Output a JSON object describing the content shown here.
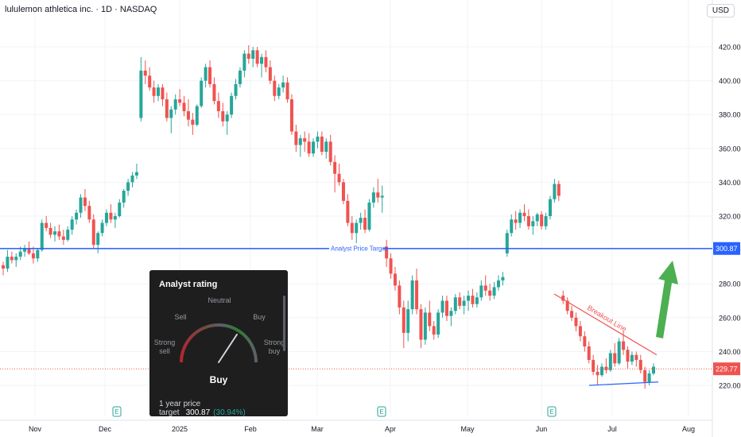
{
  "header": {
    "symbol_title": "lululemon athletica inc. · 1D · NASDAQ",
    "currency_button": "USD"
  },
  "colors": {
    "up": "#26a69a",
    "down": "#ef5350",
    "target_line": "#2962ff",
    "breakout_line": "#ef5350",
    "support_line": "#2962ff",
    "arrow": "#4caf50",
    "current_price": "#ef5350"
  },
  "analyst_rating": {
    "title": "Analyst rating",
    "labels": {
      "strong_sell": "Strong sell",
      "sell": "Sell",
      "neutral": "Neutral",
      "buy": "Buy",
      "strong_buy": "Strong buy"
    },
    "result": "Buy",
    "price_target_label": "1 year price target",
    "price_target_value": "300.87",
    "price_target_pct": "(30.94%)"
  },
  "chart_data": {
    "type": "candlestick",
    "title": "lululemon athletica inc. · 1D · NASDAQ",
    "currency": "USD",
    "ylim": [
      200,
      430
    ],
    "y_ticks": [
      "220.00",
      "240.00",
      "260.00",
      "280.00",
      "300.00",
      "320.00",
      "340.00",
      "360.00",
      "380.00",
      "400.00",
      "420.00"
    ],
    "x_ticks": [
      "Nov",
      "Dec",
      "2025",
      "Feb",
      "Mar",
      "Apr",
      "May",
      "Jun",
      "Jul",
      "Aug"
    ],
    "price_levels": [
      {
        "label": "Analyst Price Target",
        "value": 300.87,
        "tag": "300.87"
      },
      {
        "label": "",
        "value": 229.77,
        "tag": "229.77"
      }
    ],
    "annotations": [
      "Breakout Line"
    ],
    "earnings_markers": [
      "E",
      "E",
      "E"
    ],
    "candles": [
      [
        291,
        293,
        285,
        289
      ],
      [
        289,
        300,
        287,
        296
      ],
      [
        296,
        299,
        292,
        294
      ],
      [
        294,
        298,
        290,
        296
      ],
      [
        296,
        302,
        294,
        299
      ],
      [
        299,
        303,
        296,
        301
      ],
      [
        301,
        305,
        297,
        298
      ],
      [
        298,
        302,
        292,
        295
      ],
      [
        295,
        301,
        293,
        300
      ],
      [
        300,
        318,
        299,
        316
      ],
      [
        316,
        320,
        311,
        313
      ],
      [
        313,
        316,
        307,
        309
      ],
      [
        309,
        314,
        305,
        311
      ],
      [
        311,
        315,
        306,
        308
      ],
      [
        308,
        312,
        303,
        306
      ],
      [
        306,
        314,
        305,
        312
      ],
      [
        312,
        320,
        309,
        318
      ],
      [
        318,
        324,
        315,
        322
      ],
      [
        322,
        333,
        319,
        331
      ],
      [
        331,
        336,
        323,
        326
      ],
      [
        326,
        329,
        316,
        318
      ],
      [
        318,
        321,
        301,
        303
      ],
      [
        303,
        311,
        298,
        310
      ],
      [
        310,
        318,
        308,
        316
      ],
      [
        316,
        324,
        314,
        322
      ],
      [
        322,
        327,
        316,
        318
      ],
      [
        318,
        322,
        313,
        320
      ],
      [
        320,
        330,
        319,
        328
      ],
      [
        328,
        336,
        325,
        335
      ],
      [
        335,
        342,
        332,
        340
      ],
      [
        340,
        346,
        337,
        344
      ],
      [
        344,
        351,
        342,
        346
      ],
      [
        378,
        414,
        376,
        406
      ],
      [
        406,
        412,
        398,
        403
      ],
      [
        403,
        408,
        394,
        396
      ],
      [
        396,
        400,
        387,
        391
      ],
      [
        391,
        398,
        388,
        396
      ],
      [
        396,
        398,
        385,
        389
      ],
      [
        389,
        393,
        376,
        378
      ],
      [
        378,
        385,
        369,
        383
      ],
      [
        383,
        392,
        380,
        389
      ],
      [
        389,
        395,
        385,
        387
      ],
      [
        387,
        391,
        379,
        382
      ],
      [
        382,
        389,
        373,
        377
      ],
      [
        377,
        381,
        368,
        374
      ],
      [
        374,
        386,
        373,
        385
      ],
      [
        385,
        402,
        384,
        400
      ],
      [
        400,
        410,
        396,
        408
      ],
      [
        408,
        412,
        396,
        398
      ],
      [
        398,
        402,
        386,
        388
      ],
      [
        388,
        393,
        378,
        382
      ],
      [
        382,
        387,
        373,
        376
      ],
      [
        376,
        382,
        368,
        380
      ],
      [
        380,
        393,
        378,
        391
      ],
      [
        391,
        401,
        389,
        398
      ],
      [
        398,
        408,
        396,
        406
      ],
      [
        406,
        418,
        402,
        416
      ],
      [
        416,
        421,
        410,
        413
      ],
      [
        413,
        420,
        408,
        418
      ],
      [
        418,
        420,
        408,
        410
      ],
      [
        410,
        416,
        402,
        414
      ],
      [
        414,
        418,
        405,
        408
      ],
      [
        408,
        412,
        398,
        400
      ],
      [
        400,
        403,
        388,
        391
      ],
      [
        391,
        398,
        389,
        396
      ],
      [
        396,
        403,
        393,
        399
      ],
      [
        399,
        402,
        387,
        389
      ],
      [
        389,
        392,
        368,
        370
      ],
      [
        370,
        374,
        358,
        362
      ],
      [
        362,
        368,
        355,
        366
      ],
      [
        366,
        370,
        358,
        364
      ],
      [
        364,
        369,
        355,
        357
      ],
      [
        357,
        366,
        355,
        364
      ],
      [
        364,
        370,
        360,
        367
      ],
      [
        367,
        370,
        356,
        358
      ],
      [
        358,
        366,
        354,
        364
      ],
      [
        364,
        368,
        350,
        352
      ],
      [
        352,
        356,
        334,
        345
      ],
      [
        345,
        351,
        338,
        340
      ],
      [
        340,
        342,
        327,
        329
      ],
      [
        329,
        333,
        314,
        316
      ],
      [
        316,
        320,
        306,
        310
      ],
      [
        310,
        318,
        304,
        316
      ],
      [
        316,
        322,
        312,
        319
      ],
      [
        319,
        324,
        310,
        312
      ],
      [
        312,
        330,
        311,
        328
      ],
      [
        328,
        337,
        325,
        334
      ],
      [
        334,
        342,
        328,
        331
      ],
      [
        331,
        338,
        322,
        332
      ],
      [
        302,
        306,
        290,
        295
      ],
      [
        295,
        298,
        283,
        286
      ],
      [
        286,
        290,
        276,
        279
      ],
      [
        279,
        282,
        262,
        266
      ],
      [
        266,
        270,
        242,
        251
      ],
      [
        251,
        270,
        246,
        265
      ],
      [
        265,
        285,
        262,
        282
      ],
      [
        282,
        289,
        262,
        265
      ],
      [
        265,
        268,
        242,
        247
      ],
      [
        247,
        266,
        244,
        263
      ],
      [
        263,
        270,
        252,
        255
      ],
      [
        255,
        258,
        247,
        250
      ],
      [
        250,
        265,
        248,
        263
      ],
      [
        263,
        273,
        260,
        270
      ],
      [
        270,
        273,
        258,
        261
      ],
      [
        261,
        266,
        255,
        264
      ],
      [
        264,
        274,
        262,
        272
      ],
      [
        272,
        275,
        265,
        267
      ],
      [
        267,
        273,
        262,
        270
      ],
      [
        270,
        276,
        264,
        273
      ],
      [
        273,
        277,
        266,
        268
      ],
      [
        268,
        275,
        266,
        272
      ],
      [
        272,
        282,
        270,
        279
      ],
      [
        279,
        285,
        273,
        276
      ],
      [
        276,
        280,
        270,
        273
      ],
      [
        273,
        281,
        271,
        278
      ],
      [
        278,
        285,
        276,
        282
      ],
      [
        282,
        287,
        279,
        284
      ],
      [
        298,
        312,
        296,
        310
      ],
      [
        310,
        321,
        308,
        318
      ],
      [
        318,
        323,
        312,
        316
      ],
      [
        316,
        324,
        313,
        322
      ],
      [
        322,
        327,
        317,
        320
      ],
      [
        320,
        324,
        312,
        314
      ],
      [
        314,
        320,
        309,
        317
      ],
      [
        317,
        322,
        314,
        321
      ],
      [
        321,
        323,
        312,
        314
      ],
      [
        314,
        322,
        312,
        320
      ],
      [
        320,
        332,
        318,
        330
      ],
      [
        330,
        342,
        328,
        339
      ],
      [
        339,
        341,
        329,
        332
      ],
      [
        273,
        276,
        268,
        270
      ],
      [
        270,
        272,
        262,
        264
      ],
      [
        264,
        267,
        258,
        260
      ],
      [
        260,
        263,
        252,
        255
      ],
      [
        255,
        258,
        246,
        249
      ],
      [
        249,
        252,
        240,
        243
      ],
      [
        243,
        246,
        233,
        235
      ],
      [
        235,
        238,
        226,
        228
      ],
      [
        228,
        232,
        220,
        226
      ],
      [
        226,
        233,
        225,
        231
      ],
      [
        231,
        236,
        227,
        229
      ],
      [
        229,
        241,
        228,
        239
      ],
      [
        239,
        245,
        231,
        233
      ],
      [
        233,
        248,
        232,
        246
      ],
      [
        246,
        252,
        238,
        241
      ],
      [
        241,
        243,
        230,
        234
      ],
      [
        234,
        240,
        232,
        238
      ],
      [
        238,
        240,
        231,
        235
      ],
      [
        235,
        238,
        227,
        229
      ],
      [
        229,
        231,
        218,
        222
      ],
      [
        222,
        229,
        220,
        227
      ],
      [
        227,
        233,
        226,
        231
      ]
    ]
  }
}
